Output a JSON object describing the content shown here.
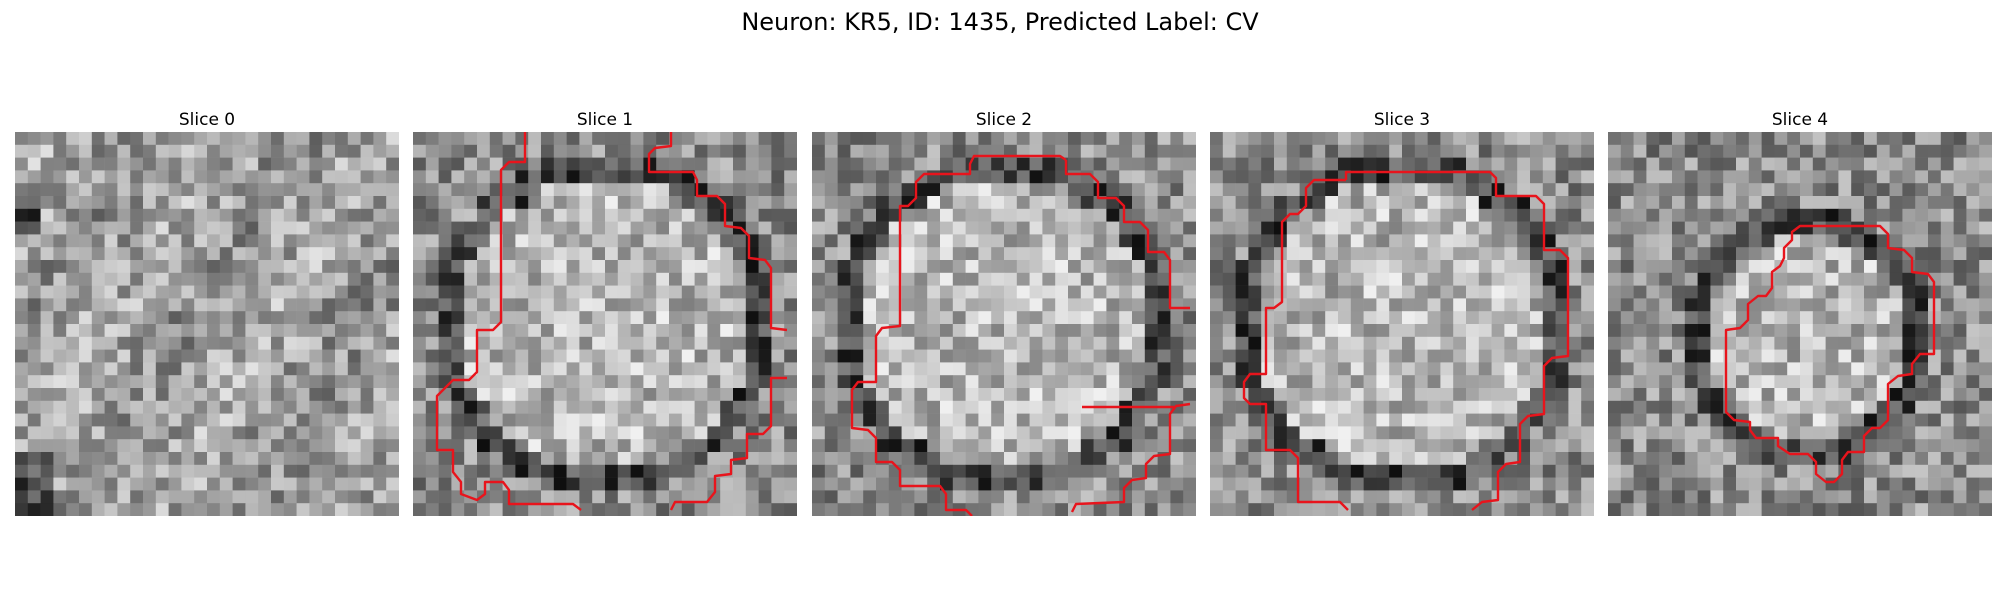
{
  "figure": {
    "title": "Neuron: KR5, ID: 1435, Predicted Label: CV"
  },
  "panels": [
    {
      "title": "Slice 0",
      "seed": 11,
      "style": "noise",
      "has_contour": false
    },
    {
      "title": "Slice 1",
      "seed": 23,
      "style": "cell",
      "has_contour": true
    },
    {
      "title": "Slice 2",
      "seed": 37,
      "style": "cell",
      "has_contour": true
    },
    {
      "title": "Slice 3",
      "seed": 51,
      "style": "cell",
      "has_contour": true
    },
    {
      "title": "Slice 4",
      "seed": 67,
      "style": "cell",
      "has_contour": true
    }
  ],
  "colors": {
    "contour": "#e8141c",
    "background": "#ffffff"
  },
  "image": {
    "colormap": "grayscale",
    "grid_cells": 30
  }
}
